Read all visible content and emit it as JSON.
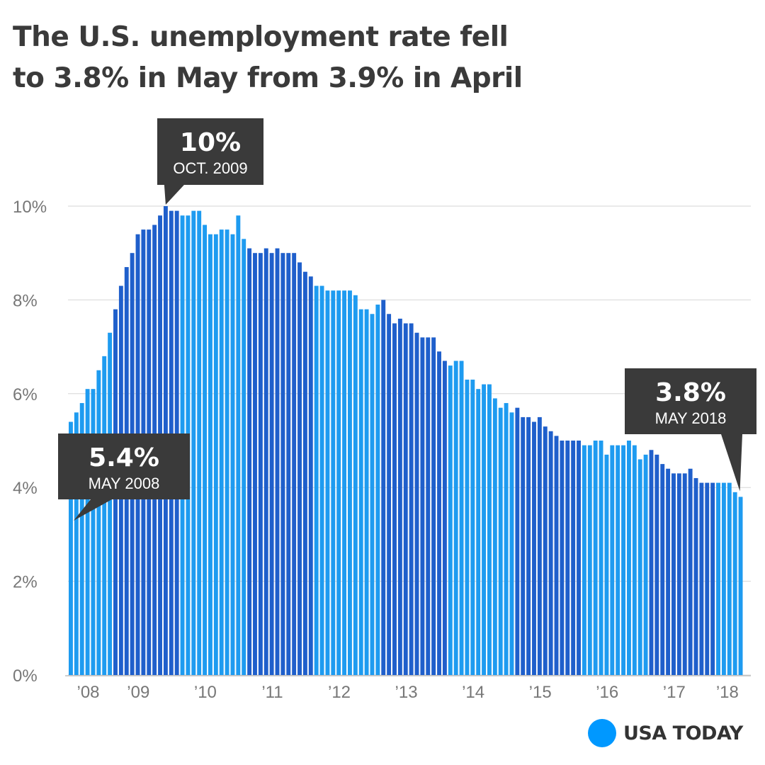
{
  "title": {
    "line1": "The U.S. unemployment rate fell",
    "line2": "to 3.8% in May from 3.9% in April"
  },
  "brand": {
    "label": "USA TODAY",
    "color": "#0098FF"
  },
  "colors": {
    "light_bar": "#1E9BF0",
    "dark_bar": "#1F5FCB",
    "annotation_bg": "#3A3A3A",
    "grid": "#D6D6D6",
    "axis_text": "#777777"
  },
  "chart_data": {
    "type": "bar",
    "title": "The U.S. unemployment rate fell to 3.8% in May from 3.9% in April",
    "xlabel": "",
    "ylabel": "",
    "ylim": [
      0,
      10
    ],
    "yticks": [
      "0%",
      "2%",
      "4%",
      "6%",
      "8%",
      "10%"
    ],
    "xtick_labels": [
      "’08",
      "’09",
      "’10",
      "’11",
      "’12",
      "’13",
      "’14",
      "’15",
      "’16",
      "’17",
      "’18"
    ],
    "start": "May 2008",
    "end": "May 2018",
    "grid": true,
    "years": [
      {
        "year": 2008,
        "months": [
          "May",
          "Jun",
          "Jul",
          "Aug",
          "Sep",
          "Oct",
          "Nov",
          "Dec"
        ],
        "values": [
          5.4,
          5.6,
          5.8,
          6.1,
          6.1,
          6.5,
          6.8,
          7.3
        ]
      },
      {
        "year": 2009,
        "months": [
          "Jan",
          "Feb",
          "Mar",
          "Apr",
          "May",
          "Jun",
          "Jul",
          "Aug",
          "Sep",
          "Oct",
          "Nov",
          "Dec"
        ],
        "values": [
          7.8,
          8.3,
          8.7,
          9.0,
          9.4,
          9.5,
          9.5,
          9.6,
          9.8,
          10.0,
          9.9,
          9.9
        ]
      },
      {
        "year": 2010,
        "months": [
          "Jan",
          "Feb",
          "Mar",
          "Apr",
          "May",
          "Jun",
          "Jul",
          "Aug",
          "Sep",
          "Oct",
          "Nov",
          "Dec"
        ],
        "values": [
          9.8,
          9.8,
          9.9,
          9.9,
          9.6,
          9.4,
          9.4,
          9.5,
          9.5,
          9.4,
          9.8,
          9.3
        ]
      },
      {
        "year": 2011,
        "months": [
          "Jan",
          "Feb",
          "Mar",
          "Apr",
          "May",
          "Jun",
          "Jul",
          "Aug",
          "Sep",
          "Oct",
          "Nov",
          "Dec"
        ],
        "values": [
          9.1,
          9.0,
          9.0,
          9.1,
          9.0,
          9.1,
          9.0,
          9.0,
          9.0,
          8.8,
          8.6,
          8.5
        ]
      },
      {
        "year": 2012,
        "months": [
          "Jan",
          "Feb",
          "Mar",
          "Apr",
          "May",
          "Jun",
          "Jul",
          "Aug",
          "Sep",
          "Oct",
          "Nov",
          "Dec"
        ],
        "values": [
          8.3,
          8.3,
          8.2,
          8.2,
          8.2,
          8.2,
          8.2,
          8.1,
          7.8,
          7.8,
          7.7,
          7.9
        ]
      },
      {
        "year": 2013,
        "months": [
          "Jan",
          "Feb",
          "Mar",
          "Apr",
          "May",
          "Jun",
          "Jul",
          "Aug",
          "Sep",
          "Oct",
          "Nov",
          "Dec"
        ],
        "values": [
          8.0,
          7.7,
          7.5,
          7.6,
          7.5,
          7.5,
          7.3,
          7.2,
          7.2,
          7.2,
          6.9,
          6.7
        ]
      },
      {
        "year": 2014,
        "months": [
          "Jan",
          "Feb",
          "Mar",
          "Apr",
          "May",
          "Jun",
          "Jul",
          "Aug",
          "Sep",
          "Oct",
          "Nov",
          "Dec"
        ],
        "values": [
          6.6,
          6.7,
          6.7,
          6.3,
          6.3,
          6.1,
          6.2,
          6.2,
          5.9,
          5.7,
          5.8,
          5.6
        ]
      },
      {
        "year": 2015,
        "months": [
          "Jan",
          "Feb",
          "Mar",
          "Apr",
          "May",
          "Jun",
          "Jul",
          "Aug",
          "Sep",
          "Oct",
          "Nov",
          "Dec"
        ],
        "values": [
          5.7,
          5.5,
          5.5,
          5.4,
          5.5,
          5.3,
          5.2,
          5.1,
          5.0,
          5.0,
          5.0,
          5.0
        ]
      },
      {
        "year": 2016,
        "months": [
          "Jan",
          "Feb",
          "Mar",
          "Apr",
          "May",
          "Jun",
          "Jul",
          "Aug",
          "Sep",
          "Oct",
          "Nov",
          "Dec"
        ],
        "values": [
          4.9,
          4.9,
          5.0,
          5.0,
          4.7,
          4.9,
          4.9,
          4.9,
          5.0,
          4.9,
          4.6,
          4.7
        ]
      },
      {
        "year": 2017,
        "months": [
          "Jan",
          "Feb",
          "Mar",
          "Apr",
          "May",
          "Jun",
          "Jul",
          "Aug",
          "Sep",
          "Oct",
          "Nov",
          "Dec"
        ],
        "values": [
          4.8,
          4.7,
          4.5,
          4.4,
          4.3,
          4.3,
          4.3,
          4.4,
          4.2,
          4.1,
          4.1,
          4.1
        ]
      },
      {
        "year": 2018,
        "months": [
          "Jan",
          "Feb",
          "Mar",
          "Apr",
          "May"
        ],
        "values": [
          4.1,
          4.1,
          4.1,
          3.9,
          3.8
        ]
      }
    ],
    "annotations": [
      {
        "value_label": "5.4%",
        "date_label": "MAY 2008",
        "target": "first"
      },
      {
        "value_label": "10%",
        "date_label": "OCT. 2009",
        "target": "peak"
      },
      {
        "value_label": "3.8%",
        "date_label": "MAY 2018",
        "target": "last"
      }
    ]
  }
}
